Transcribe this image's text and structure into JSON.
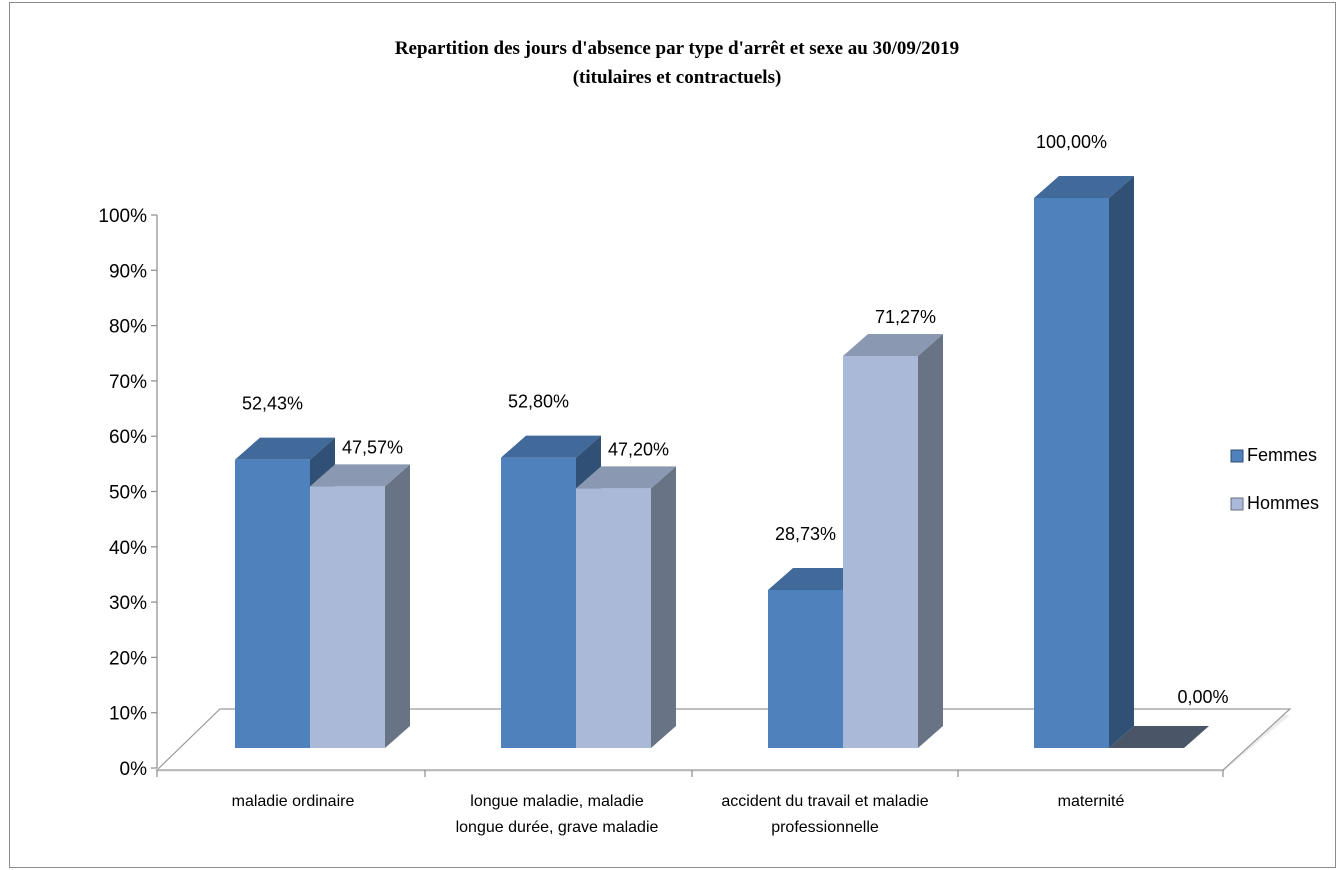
{
  "chart_data": {
    "type": "bar",
    "title": "Repartition des jours d'absence par type d'arrêt  et sexe au 30/09/2019",
    "subtitle": "(titulaires et contractuels)",
    "categories": [
      [
        "maladie ordinaire"
      ],
      [
        "longue maladie, maladie",
        "longue durée, grave maladie"
      ],
      [
        "accident du travail et maladie",
        "professionnelle"
      ],
      [
        "maternité"
      ]
    ],
    "series": [
      {
        "name": "Femmes",
        "values": [
          52.43,
          52.8,
          28.73,
          100.0
        ],
        "labels": [
          "52,43%",
          "52,80%",
          "28,73%",
          "100,00%"
        ],
        "color": "#4f81bd"
      },
      {
        "name": "Hommes",
        "values": [
          47.57,
          47.2,
          71.27,
          0.0
        ],
        "labels": [
          "47,57%",
          "47,20%",
          "71,27%",
          "0,00%"
        ],
        "color": "#aab9d8"
      }
    ],
    "yticks": [
      "0%",
      "10%",
      "20%",
      "30%",
      "40%",
      "50%",
      "60%",
      "70%",
      "80%",
      "90%",
      "100%"
    ],
    "ylim": [
      0,
      100
    ],
    "style": "3d-clustered-column",
    "legend": "right",
    "grid": false
  }
}
